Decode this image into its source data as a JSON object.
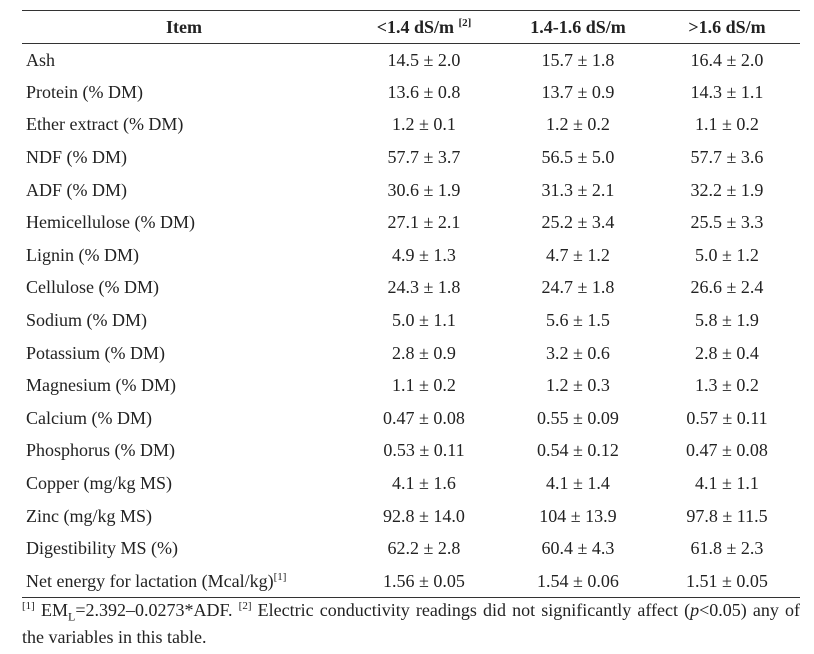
{
  "table": {
    "headers": [
      "Item",
      "<1.4 dS/m",
      "1.4-1.6 dS/m",
      ">1.6 dS/m"
    ],
    "header_ref": "[2]",
    "rows": [
      {
        "item": "Ash",
        "v1": "14.5 ± 2.0",
        "v2": "15.7 ± 1.8",
        "v3": "16.4 ± 2.0"
      },
      {
        "item": "Protein (% DM)",
        "v1": "13.6 ± 0.8",
        "v2": "13.7 ± 0.9",
        "v3": "14.3 ± 1.1"
      },
      {
        "item": "Ether extract (% DM)",
        "v1": "1.2 ± 0.1",
        "v2": "1.2 ± 0.2",
        "v3": "1.1 ± 0.2"
      },
      {
        "item": "NDF (% DM)",
        "v1": "57.7 ± 3.7",
        "v2": "56.5 ± 5.0",
        "v3": "57.7 ± 3.6"
      },
      {
        "item": "ADF (% DM)",
        "v1": "30.6 ± 1.9",
        "v2": "31.3 ± 2.1",
        "v3": "32.2 ± 1.9"
      },
      {
        "item": "Hemicellulose (% DM)",
        "v1": "27.1 ± 2.1",
        "v2": "25.2 ± 3.4",
        "v3": "25.5 ± 3.3"
      },
      {
        "item": "Lignin (% DM)",
        "v1": "4.9 ± 1.3",
        "v2": "4.7 ± 1.2",
        "v3": "5.0 ± 1.2"
      },
      {
        "item": "Cellulose (% DM)",
        "v1": "24.3 ± 1.8",
        "v2": "24.7 ± 1.8",
        "v3": "26.6 ± 2.4"
      },
      {
        "item": "Sodium (% DM)",
        "v1": "5.0 ± 1.1",
        "v2": "5.6 ± 1.5",
        "v3": "5.8 ± 1.9"
      },
      {
        "item": "Potassium (% DM)",
        "v1": "2.8 ± 0.9",
        "v2": "3.2 ± 0.6",
        "v3": "2.8 ± 0.4"
      },
      {
        "item": "Magnesium (% DM)",
        "v1": "1.1 ± 0.2",
        "v2": "1.2 ± 0.3",
        "v3": "1.3 ± 0.2"
      },
      {
        "item": "Calcium (% DM)",
        "v1": "0.47 ± 0.08",
        "v2": "0.55 ± 0.09",
        "v3": "0.57 ± 0.11"
      },
      {
        "item": "Phosphorus (% DM)",
        "v1": "0.53 ± 0.11",
        "v2": "0.54 ± 0.12",
        "v3": "0.47 ± 0.08"
      },
      {
        "item": "Copper (mg/kg MS)",
        "v1": "4.1 ± 1.6",
        "v2": "4.1 ± 1.4",
        "v3": "4.1 ± 1.1"
      },
      {
        "item": "Zinc (mg/kg MS)",
        "v1": "92.8 ± 14.0",
        "v2": "104 ± 13.9",
        "v3": "97.8 ± 11.5"
      },
      {
        "item": "Digestibility MS (%)",
        "v1": "62.2 ± 2.8",
        "v2": "60.4 ± 4.3",
        "v3": "61.8 ± 2.3"
      },
      {
        "item": "Net energy for lactation (Mcal/kg)",
        "item_ref": "[1]",
        "v1": "1.56 ± 0.05",
        "v2": "1.54 ± 0.06",
        "v3": "1.51 ± 0.05"
      }
    ]
  },
  "footnote": {
    "ref1": "[1]",
    "part1_prefix": " EM",
    "part1_sub": "L",
    "part1_suffix": "=2.392–0.0273*ADF. ",
    "ref2": "[2]",
    "part2": " Electric conductivity readings did not significantly affect (",
    "p_italic": "p",
    "part3": "<0.05) any of the variables in this table."
  }
}
